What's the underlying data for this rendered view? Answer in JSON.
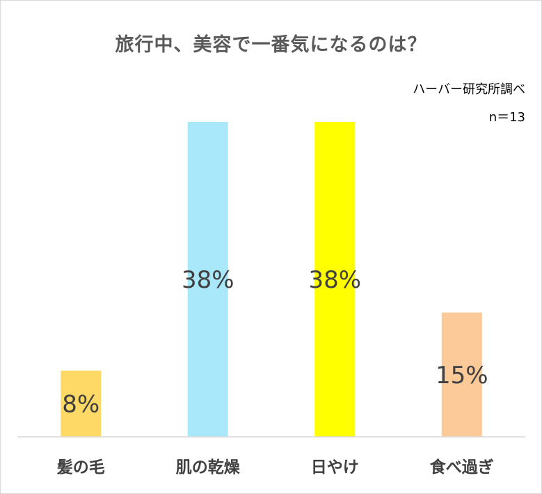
{
  "header": {
    "title": "旅行中、美容で一番気になるのは？",
    "source": "ハーバー研究所調べ",
    "sample": "n＝13"
  },
  "chart_data": {
    "type": "bar",
    "title": "旅行中、美容で一番気になるのは？",
    "categories": [
      "髪の毛",
      "肌の乾燥",
      "日やけ",
      "食べ過ぎ"
    ],
    "values": [
      8,
      38,
      38,
      15
    ],
    "data_labels": [
      "8%",
      "38%",
      "38%",
      "15%"
    ],
    "colors": [
      "#ffd966",
      "#a9e8fb",
      "#ffff00",
      "#fcc999"
    ],
    "unit": "%",
    "ylim": [
      0,
      38
    ],
    "grid": false,
    "legend": "none"
  }
}
